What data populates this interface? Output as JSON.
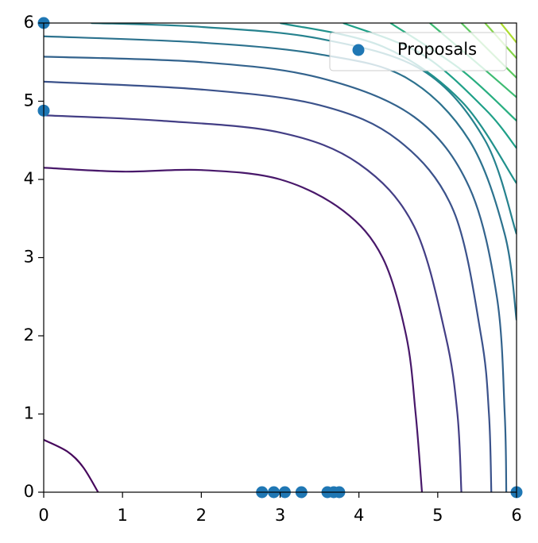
{
  "chart_data": {
    "type": "contour",
    "xlim": [
      0,
      6
    ],
    "ylim": [
      0,
      6
    ],
    "xticks": [
      0,
      1,
      2,
      3,
      4,
      5,
      6
    ],
    "yticks": [
      0,
      1,
      2,
      3,
      4,
      5,
      6
    ],
    "legend": "upper right",
    "contours": [
      {
        "color": "#46085c",
        "x": [
          0,
          0.3,
          0.5,
          0.69
        ],
        "y": [
          0.67,
          0.52,
          0.32,
          0
        ]
      },
      {
        "color": "#48186a",
        "x": [
          0,
          1,
          2,
          3,
          3.8,
          4.3,
          4.6,
          4.72,
          4.8
        ],
        "y": [
          4.15,
          4.1,
          4.12,
          4.0,
          3.6,
          3.0,
          2.0,
          1.0,
          0
        ]
      },
      {
        "color": "#433e85",
        "x": [
          0,
          1.5,
          3,
          4,
          4.7,
          5.1,
          5.25,
          5.3
        ],
        "y": [
          4.82,
          4.75,
          4.6,
          4.2,
          3.4,
          2.0,
          1.0,
          0
        ]
      },
      {
        "color": "#3b528b",
        "x": [
          0,
          2,
          3.5,
          4.5,
          5.2,
          5.55,
          5.65,
          5.68
        ],
        "y": [
          5.25,
          5.15,
          4.95,
          4.5,
          3.6,
          2.0,
          1.0,
          0
        ]
      },
      {
        "color": "#33638d",
        "x": [
          0,
          2,
          3.5,
          4.7,
          5.4,
          5.75,
          5.85,
          5.87
        ],
        "y": [
          5.57,
          5.5,
          5.3,
          4.8,
          3.9,
          2.5,
          1.0,
          0
        ]
      },
      {
        "color": "#2c728e",
        "x": [
          0,
          2,
          3.5,
          4.6,
          5.4,
          5.85,
          6
        ],
        "y": [
          5.83,
          5.75,
          5.6,
          5.3,
          4.5,
          3.3,
          2.2
        ]
      },
      {
        "color": "#26828e",
        "x": [
          0.6,
          2,
          3.5,
          4.8,
          5.6,
          6
        ],
        "y": [
          6,
          5.95,
          5.8,
          5.4,
          4.5,
          3.3
        ]
      },
      {
        "color": "#21918c",
        "x": [
          3,
          4.3,
          5.3,
          6
        ],
        "y": [
          6,
          5.7,
          5.0,
          3.95
        ]
      },
      {
        "color": "#1fa088",
        "x": [
          3.8,
          4.8,
          5.6,
          6
        ],
        "y": [
          6,
          5.6,
          4.9,
          4.4
        ]
      },
      {
        "color": "#28ae80",
        "x": [
          4.4,
          5.3,
          6
        ],
        "y": [
          6,
          5.4,
          4.75
        ]
      },
      {
        "color": "#3fbc73",
        "x": [
          4.9,
          5.6,
          6
        ],
        "y": [
          6,
          5.4,
          5.05
        ]
      },
      {
        "color": "#5ec962",
        "x": [
          5.3,
          6
        ],
        "y": [
          6,
          5.3
        ]
      },
      {
        "color": "#84d44b",
        "x": [
          5.6,
          6
        ],
        "y": [
          6,
          5.55
        ]
      },
      {
        "color": "#addc30",
        "x": [
          5.8,
          6
        ],
        "y": [
          6,
          5.75
        ]
      }
    ],
    "series": [
      {
        "name": "Proposals",
        "color": "#1f77b4",
        "x": [
          0,
          0,
          2.77,
          2.92,
          3.06,
          3.27,
          3.6,
          3.68,
          3.75,
          6
        ],
        "y": [
          6,
          4.88,
          0,
          0,
          0,
          0,
          0,
          0,
          0,
          0
        ]
      }
    ]
  }
}
